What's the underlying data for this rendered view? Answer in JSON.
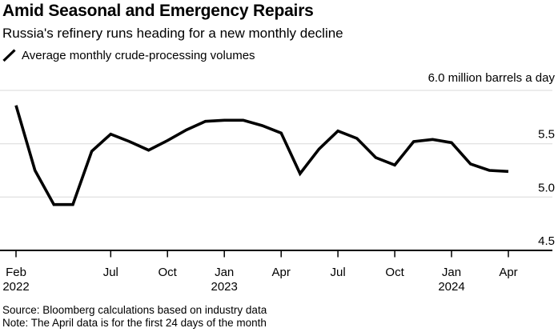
{
  "header": {
    "title": "Amid Seasonal and Emergency Repairs",
    "subtitle": "Russia's refinery runs heading for a new monthly decline"
  },
  "legend": {
    "label": "Average monthly crude-processing volumes",
    "marker": "diagonal-line"
  },
  "footer": {
    "source": "Source: Bloomberg calculations based on industry data",
    "note": "Note: The April data is for the first 24 days of the month"
  },
  "chart_data": {
    "type": "line",
    "title": "Average monthly crude-processing volumes",
    "unit_label": "6.0 million barrels a day",
    "ylabel": "million barrels a day",
    "xlabel": "",
    "ylim": [
      4.5,
      6.0
    ],
    "grid": true,
    "legend_position": "top-left",
    "grid_values": [
      6.0,
      5.5,
      5.0
    ],
    "y_tick_labels": [
      {
        "value": 5.5,
        "label": "5.5"
      },
      {
        "value": 5.0,
        "label": "5.0"
      },
      {
        "value": 4.5,
        "label": "4.5"
      }
    ],
    "x": [
      "Feb 2022",
      "Mar 2022",
      "Apr 2022",
      "May 2022",
      "Jun 2022",
      "Jul 2022",
      "Aug 2022",
      "Sep 2022",
      "Oct 2022",
      "Nov 2022",
      "Dec 2022",
      "Jan 2023",
      "Feb 2023",
      "Mar 2023",
      "Apr 2023",
      "May 2023",
      "Jun 2023",
      "Jul 2023",
      "Aug 2023",
      "Sep 2023",
      "Oct 2023",
      "Nov 2023",
      "Dec 2023",
      "Jan 2024",
      "Feb 2024",
      "Mar 2024",
      "Apr 2024"
    ],
    "series": [
      {
        "name": "Average monthly crude-processing volumes",
        "color": "#000000",
        "values": [
          5.86,
          5.25,
          4.93,
          4.93,
          5.43,
          5.59,
          5.52,
          5.44,
          5.53,
          5.63,
          5.71,
          5.72,
          5.72,
          5.67,
          5.6,
          5.22,
          5.45,
          5.62,
          5.55,
          5.37,
          5.3,
          5.52,
          5.54,
          5.51,
          5.31,
          5.25,
          5.24
        ]
      }
    ],
    "x_ticks": [
      {
        "month_index": 0,
        "label": "Feb",
        "year": "2022"
      },
      {
        "month_index": 5,
        "label": "Jul"
      },
      {
        "month_index": 8,
        "label": "Oct"
      },
      {
        "month_index": 11,
        "label": "Jan",
        "year": "2023"
      },
      {
        "month_index": 14,
        "label": "Apr"
      },
      {
        "month_index": 17,
        "label": "Jul"
      },
      {
        "month_index": 20,
        "label": "Oct"
      },
      {
        "month_index": 23,
        "label": "Jan",
        "year": "2024"
      },
      {
        "month_index": 26,
        "label": "Apr"
      }
    ],
    "colors": {
      "line": "#000000",
      "grid": "#d8d8d8",
      "axis": "#000000",
      "background": "#ffffff",
      "text": "#000000"
    }
  }
}
